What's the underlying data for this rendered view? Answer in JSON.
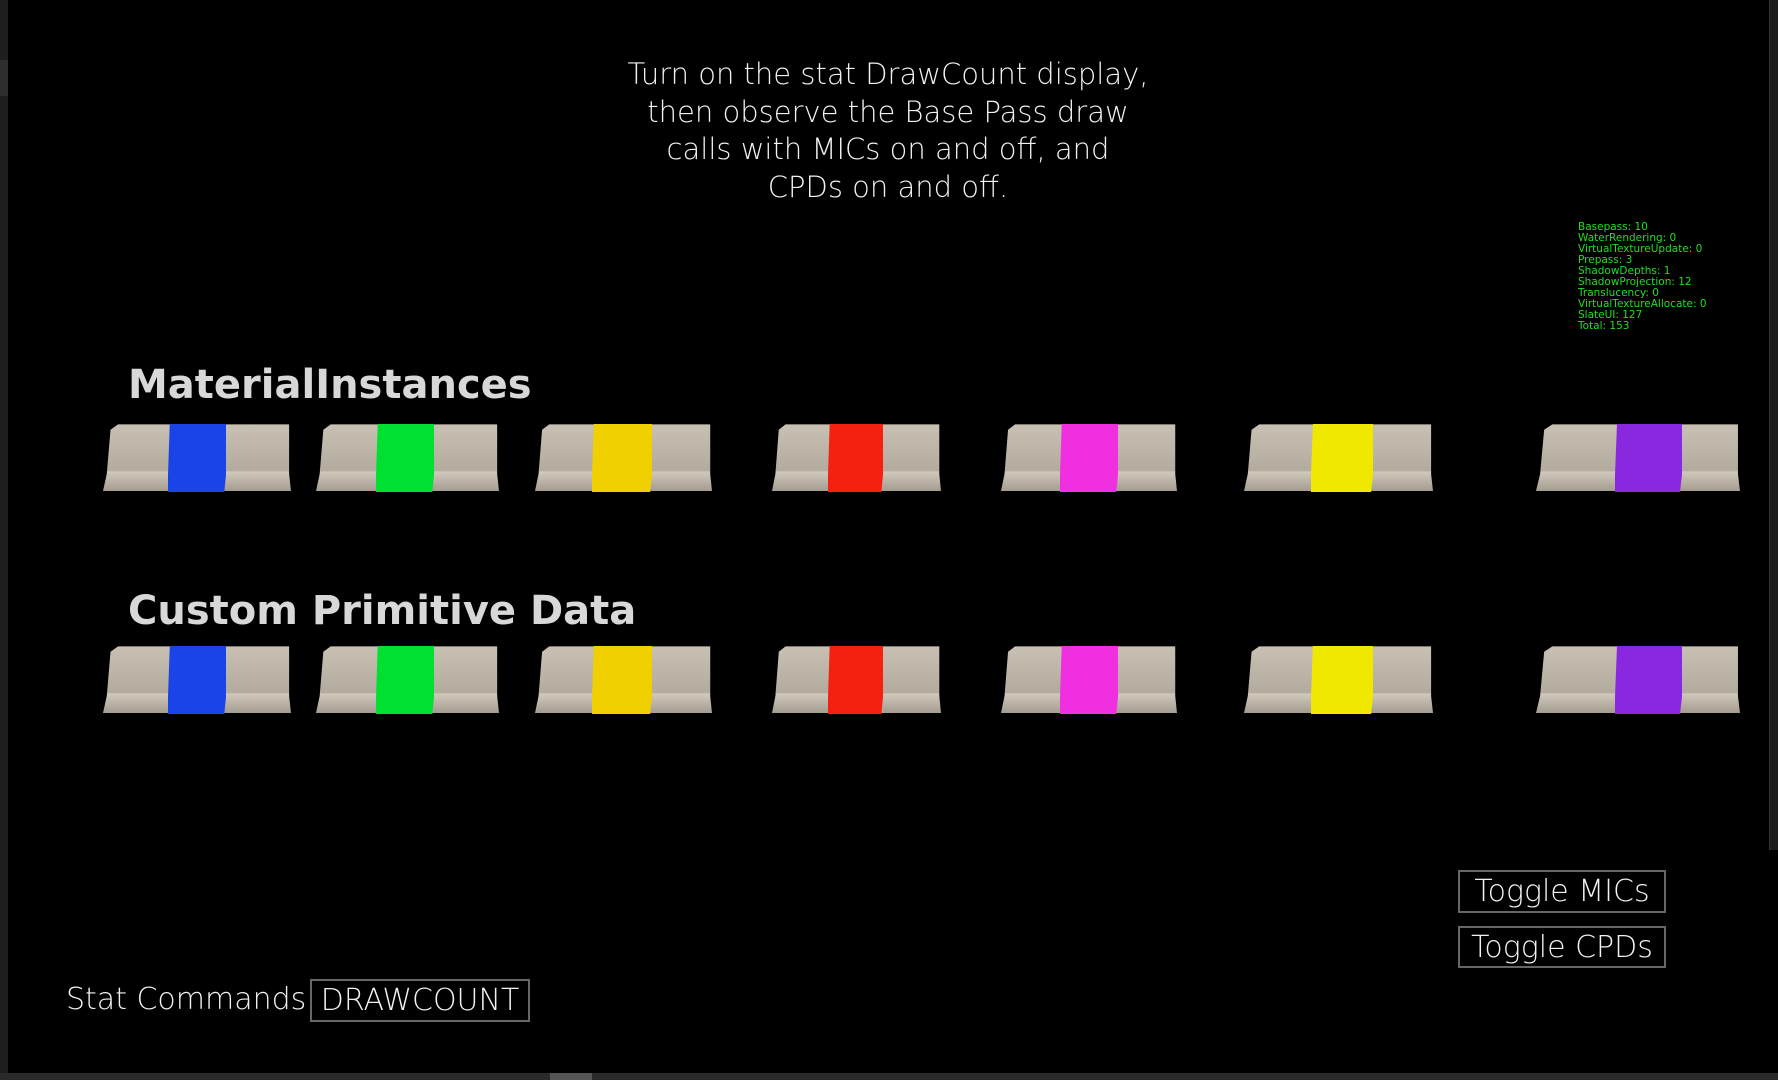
{
  "instructions": {
    "lines": [
      "Turn on the stat DrawCount display,",
      "then observe the Base Pass draw",
      "calls with MICs on and off, and",
      "CPDs on and off."
    ]
  },
  "stats": {
    "color": "#22dd22",
    "lines": [
      "Basepass: 10",
      "WaterRendering: 0",
      "VirtualTextureUpdate: 0",
      "Prepass: 3",
      "ShadowDepths: 1",
      "ShadowProjection: 12",
      "Translucency: 0",
      "VirtualTextureAllocate: 0",
      "SlateUI: 127",
      "Total: 153"
    ]
  },
  "sections": {
    "material_instances": "MaterialInstances",
    "custom_primitive_data": "Custom Primitive Data"
  },
  "barrier_colors": [
    "#1a44e8",
    "#00e030",
    "#f0d000",
    "#f52010",
    "#f030e0",
    "#f0e800",
    "#8a28e0"
  ],
  "buttons": {
    "toggle_mics": "Toggle MICs",
    "toggle_cpds": "Toggle CPDs"
  },
  "stat_commands": {
    "label": "Stat Commands",
    "value": "DRAWCOUNT"
  }
}
